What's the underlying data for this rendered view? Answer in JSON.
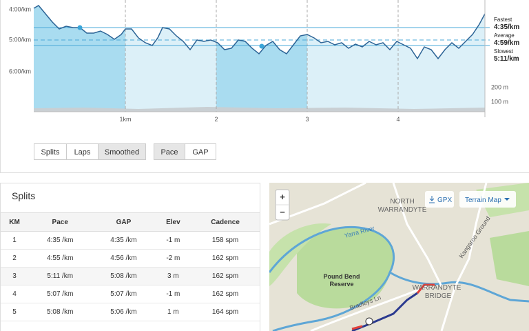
{
  "chart": {
    "y_labels": [
      "4:00/km",
      "5:00/km",
      "6:00/km"
    ],
    "elevation_labels": [
      "200 m",
      "100 m"
    ],
    "x_labels": [
      "1km",
      "2",
      "3",
      "4"
    ],
    "stats": [
      {
        "label": "Fastest",
        "value": "4:35/km"
      },
      {
        "label": "Average",
        "value": "4:59/km"
      },
      {
        "label": "Slowest",
        "value": "5:11/km"
      }
    ]
  },
  "controls": {
    "view": [
      "Splits",
      "Laps",
      "Smoothed"
    ],
    "metric": [
      "Pace",
      "GAP"
    ]
  },
  "splits": {
    "title": "Splits",
    "columns": [
      "KM",
      "Pace",
      "GAP",
      "Elev",
      "Cadence"
    ],
    "rows": [
      [
        "1",
        "4:35 /km",
        "4:35 /km",
        "-1 m",
        "158 spm"
      ],
      [
        "2",
        "4:55 /km",
        "4:56 /km",
        "-2 m",
        "162 spm"
      ],
      [
        "3",
        "5:11 /km",
        "5:08 /km",
        "3 m",
        "162 spm"
      ],
      [
        "4",
        "5:07 /km",
        "5:07 /km",
        "-1 m",
        "162 spm"
      ],
      [
        "5",
        "5:08 /km",
        "5:06 /km",
        "1 m",
        "164 spm"
      ]
    ]
  },
  "map": {
    "zoom_in": "+",
    "zoom_out": "−",
    "gpx": "GPX",
    "map_type": "Terrain Map",
    "labels": [
      "NORTH",
      "WARRANDYTE",
      "WARRANDYTE",
      "BRIDGE",
      "Pound Bend",
      "Reserve",
      "Bradleys Ln",
      "Yarra River",
      "Kangaroo Ground"
    ]
  }
}
